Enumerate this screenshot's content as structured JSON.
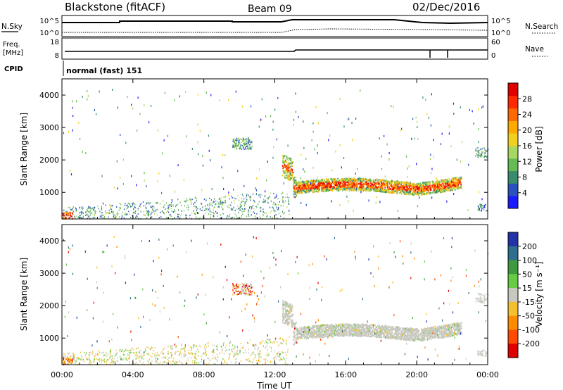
{
  "header": {
    "station": "Blackstone (fitACF)",
    "beam": "Beam 09",
    "date": "02/Dec/2016"
  },
  "sidepanel": {
    "nsky_label": "N.Sky",
    "nsky_ticks": [
      "10^5",
      "10^0"
    ],
    "nsearch_label": "N.Search",
    "nsearch_ticks": [
      "10^5",
      "10^0"
    ],
    "freq_label": "Freq.",
    "freq_unit": "[MHz]",
    "freq_ticks": [
      "18",
      "8"
    ],
    "nave_label": "Nave",
    "nave_ticks": [
      "60",
      "0"
    ],
    "cpid_label": "CPID",
    "cpid_value": "normal (fast) 151"
  },
  "colors": {
    "frame": "#000000",
    "scatter_gray": "#c8c8c0"
  },
  "chart_data": [
    {
      "type": "heatmap",
      "panel": "power",
      "ylabel": "Slant Range [km]",
      "yticks": [
        1000,
        2000,
        3000,
        4000
      ],
      "ylim": [
        180,
        4500
      ],
      "xlim": [
        0,
        24
      ],
      "colorbar_label": "Power [dB]",
      "colorbar_ticks": [
        4,
        8,
        12,
        16,
        20,
        24,
        28
      ],
      "colorbar_colors": [
        "#1a1aff",
        "#2a52be",
        "#3a8c6e",
        "#66bb55",
        "#a9d860",
        "#f2d020",
        "#ffaa00",
        "#ff6a00",
        "#ff2a00",
        "#e00000"
      ]
    },
    {
      "type": "heatmap",
      "panel": "velocity",
      "ylabel": "Slant Range [km]",
      "yticks": [
        1000,
        2000,
        3000,
        4000
      ],
      "ylim": [
        180,
        4500
      ],
      "xlim": [
        0,
        24
      ],
      "xlabel": "Time UT",
      "xticks": [
        "00:00",
        "04:00",
        "08:00",
        "12:00",
        "16:00",
        "20:00",
        "00:00"
      ],
      "colorbar_label": "Velocity [m s⁻¹]",
      "colorbar_ticks": [
        "200",
        "100",
        "50",
        "15",
        "-15",
        "-50",
        "-100",
        "-200"
      ],
      "colorbar_colors": [
        "#2233aa",
        "#2f6e8c",
        "#3f9a3f",
        "#66cc44",
        "#c8c8c0",
        "#f4c030",
        "#ff8c00",
        "#ff4a00",
        "#e00000"
      ]
    }
  ]
}
